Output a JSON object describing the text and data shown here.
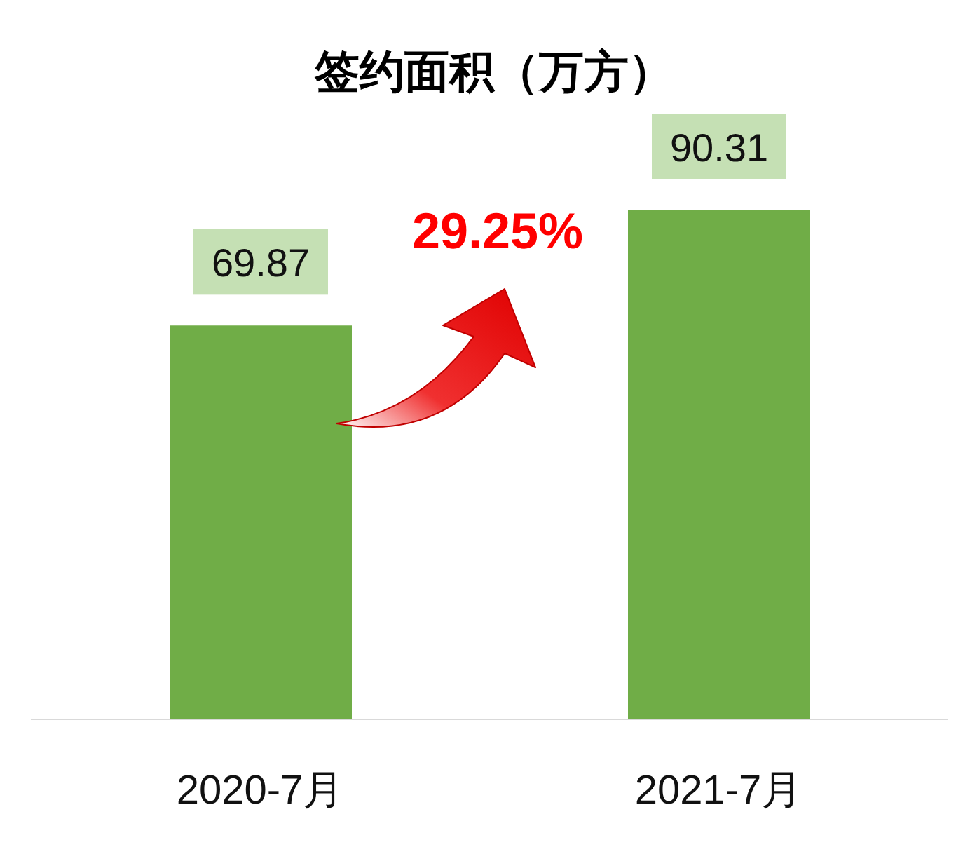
{
  "chart_data": {
    "type": "bar",
    "title": "签约面积（万方）",
    "categories": [
      "2020-7月",
      "2021-7月"
    ],
    "values": [
      69.87,
      90.31
    ],
    "color": "#70ad47",
    "data_labels": true,
    "annotations": [
      "29.25%"
    ]
  }
}
